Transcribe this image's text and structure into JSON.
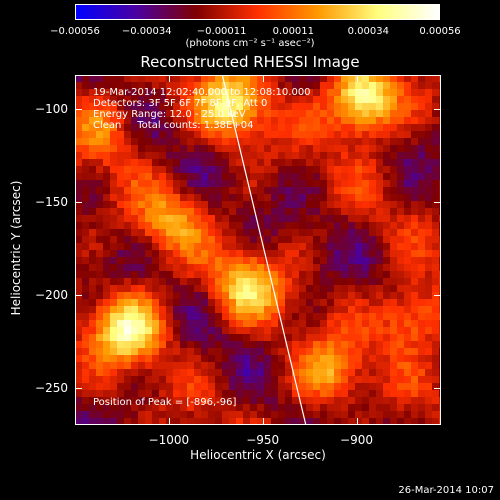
{
  "chart_data": {
    "type": "heatmap",
    "title": "Reconstructed RHESSI Image",
    "xlabel": "Heliocentric X (arcsec)",
    "ylabel": "Heliocentric Y (arcsec)",
    "xlim": [
      -1050,
      -855
    ],
    "ylim": [
      -270,
      -82
    ],
    "x_ticks": [
      -1000,
      -950,
      -900
    ],
    "x_tick_labels": [
      "−1000",
      "−950",
      "−900"
    ],
    "y_ticks": [
      -100,
      -150,
      -200,
      -250
    ],
    "y_tick_labels": [
      "−100",
      "−150",
      "−200",
      "−250"
    ],
    "colorbar": {
      "range": [
        -0.00056,
        0.00056
      ],
      "ticks": [
        "−0.00056",
        "−0.00034",
        "−0.00011",
        "0.00011",
        "0.00034",
        "0.00056"
      ],
      "units_label": "(photons cm⁻² s⁻¹ asec⁻²)",
      "colormap": [
        "#0000ff",
        "#4b00a0",
        "#800000",
        "#ff3000",
        "#ff9900",
        "#ffff80",
        "#ffffff"
      ]
    },
    "limb_line": {
      "x": [
        -972,
        -927
      ],
      "y": [
        -80,
        -270
      ]
    },
    "hotspots": [
      {
        "x": -897,
        "y": -96,
        "intensity": 1.0
      },
      {
        "x": -1022,
        "y": -218,
        "intensity": 0.82
      },
      {
        "x": -966,
        "y": -98,
        "intensity": 0.72
      },
      {
        "x": -958,
        "y": -195,
        "intensity": 0.6
      },
      {
        "x": -870,
        "y": -212,
        "intensity": 0.55
      },
      {
        "x": -915,
        "y": -242,
        "intensity": 0.5
      },
      {
        "x": -1000,
        "y": -160,
        "intensity": 0.42
      },
      {
        "x": -1035,
        "y": -110,
        "intensity": 0.38
      }
    ],
    "grid": false,
    "legend": "none"
  },
  "info": {
    "time_range": "19-Mar-2014 12:02:40.000 to 12:08:10.000",
    "detectors": "Detectors: 3F 5F 6F 7F 8F 9F, Att 0",
    "energy": "Energy Range: 12.0 - 25.0 keV",
    "clean": "Clean     Total counts: 1.38E+04",
    "peak": "Position of Peak = [-896,-96]"
  },
  "footer": {
    "timestamp": "26-Mar-2014 10:07"
  }
}
